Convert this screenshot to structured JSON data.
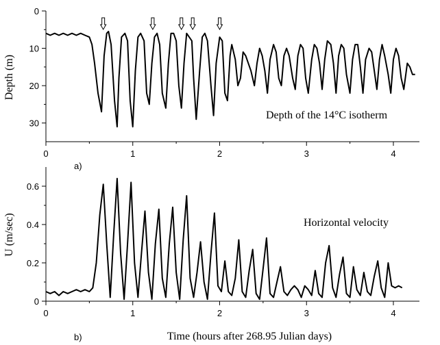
{
  "chart_data": [
    {
      "type": "line",
      "panel_label": "a)",
      "annotation": "Depth of the 14°C isotherm",
      "ylabel": "Depth (m)",
      "xlabel": "",
      "xlim": [
        0,
        4.3
      ],
      "ylim": [
        0,
        35
      ],
      "y_inverted": true,
      "x_ticks": [
        "0",
        "1",
        "2",
        "3",
        "4"
      ],
      "y_ticks": [
        "0",
        "10",
        "20",
        "30"
      ],
      "arrows_x": [
        0.66,
        1.23,
        1.56,
        1.69,
        2.0
      ],
      "series": [
        {
          "x": [
            0.0,
            0.05,
            0.1,
            0.15,
            0.2,
            0.25,
            0.3,
            0.35,
            0.4,
            0.45,
            0.5,
            0.53,
            0.56,
            0.6,
            0.64,
            0.67,
            0.7,
            0.72,
            0.75,
            0.79,
            0.82,
            0.84,
            0.87,
            0.91,
            0.94,
            0.97,
            1.0,
            1.03,
            1.06,
            1.09,
            1.13,
            1.16,
            1.19,
            1.22,
            1.25,
            1.28,
            1.31,
            1.34,
            1.38,
            1.41,
            1.44,
            1.47,
            1.5,
            1.53,
            1.56,
            1.59,
            1.62,
            1.65,
            1.68,
            1.7,
            1.73,
            1.77,
            1.8,
            1.83,
            1.86,
            1.9,
            1.93,
            1.96,
            2.0,
            2.03,
            2.06,
            2.09,
            2.12,
            2.14,
            2.18,
            2.21,
            2.24,
            2.27,
            2.3,
            2.33,
            2.36,
            2.4,
            2.43,
            2.46,
            2.49,
            2.52,
            2.55,
            2.58,
            2.62,
            2.65,
            2.68,
            2.71,
            2.74,
            2.77,
            2.8,
            2.84,
            2.87,
            2.9,
            2.93,
            2.96,
            2.99,
            3.02,
            3.06,
            3.09,
            3.12,
            3.15,
            3.18,
            3.21,
            3.24,
            3.28,
            3.31,
            3.34,
            3.37,
            3.4,
            3.43,
            3.46,
            3.5,
            3.53,
            3.56,
            3.59,
            3.62,
            3.65,
            3.68,
            3.72,
            3.75,
            3.78,
            3.81,
            3.84,
            3.87,
            3.9,
            3.94,
            3.97,
            4.0,
            4.03,
            4.06,
            4.09,
            4.12,
            4.16,
            4.19,
            4.22,
            4.25
          ],
          "values": [
            6,
            6.5,
            6,
            6.5,
            6,
            6.5,
            6,
            6.5,
            6,
            6.5,
            7,
            9,
            14,
            22,
            27,
            12,
            6,
            5.5,
            9,
            24,
            31,
            18,
            7,
            6,
            8,
            24,
            31,
            16,
            7,
            6,
            8,
            22,
            25,
            14,
            7,
            6,
            9,
            22,
            26,
            14,
            6,
            6,
            8,
            20,
            26,
            14,
            6,
            7,
            8,
            18,
            29,
            16,
            7,
            6,
            8,
            20,
            28,
            14,
            7,
            8,
            22,
            24,
            12,
            9,
            13,
            20,
            18,
            11,
            12,
            14,
            16,
            20,
            14,
            10,
            12,
            16,
            22,
            13,
            9,
            11,
            18,
            20,
            12,
            10,
            12,
            18,
            21,
            12,
            9,
            10,
            18,
            22,
            13,
            9,
            10,
            14,
            21,
            13,
            8,
            9,
            14,
            22,
            12,
            9,
            10,
            17,
            22,
            13,
            9,
            9,
            15,
            22,
            13,
            10,
            11,
            16,
            21,
            13,
            9,
            12,
            17,
            22,
            13,
            10,
            12,
            18,
            21,
            14,
            15,
            17,
            17
          ]
        }
      ]
    },
    {
      "type": "line",
      "panel_label": "b)",
      "annotation": "Horizontal velocity",
      "ylabel": "U (m/sec)",
      "xlabel": "Time (hours after 268.95 Julian days)",
      "xlim": [
        0,
        4.3
      ],
      "ylim": [
        0,
        0.7
      ],
      "x_ticks": [
        "0",
        "1",
        "2",
        "3",
        "4"
      ],
      "y_ticks": [
        "0",
        "0.2",
        "0.4",
        "0.6"
      ],
      "series": [
        {
          "x": [
            0.0,
            0.05,
            0.1,
            0.15,
            0.2,
            0.25,
            0.3,
            0.35,
            0.4,
            0.45,
            0.5,
            0.54,
            0.58,
            0.62,
            0.66,
            0.7,
            0.74,
            0.78,
            0.82,
            0.86,
            0.9,
            0.94,
            0.98,
            1.02,
            1.06,
            1.1,
            1.14,
            1.18,
            1.22,
            1.26,
            1.3,
            1.34,
            1.38,
            1.42,
            1.46,
            1.5,
            1.54,
            1.58,
            1.62,
            1.66,
            1.7,
            1.74,
            1.78,
            1.82,
            1.86,
            1.9,
            1.94,
            1.98,
            2.02,
            2.06,
            2.1,
            2.14,
            2.18,
            2.22,
            2.26,
            2.3,
            2.34,
            2.38,
            2.42,
            2.46,
            2.5,
            2.54,
            2.58,
            2.62,
            2.66,
            2.7,
            2.74,
            2.78,
            2.82,
            2.86,
            2.9,
            2.94,
            2.98,
            3.02,
            3.06,
            3.1,
            3.14,
            3.18,
            3.22,
            3.26,
            3.3,
            3.34,
            3.38,
            3.42,
            3.46,
            3.5,
            3.54,
            3.58,
            3.62,
            3.66,
            3.7,
            3.74,
            3.78,
            3.82,
            3.86,
            3.9,
            3.94,
            3.98,
            4.02,
            4.06,
            4.1
          ],
          "values": [
            0.05,
            0.04,
            0.05,
            0.03,
            0.05,
            0.04,
            0.05,
            0.06,
            0.05,
            0.06,
            0.05,
            0.07,
            0.2,
            0.45,
            0.61,
            0.3,
            0.02,
            0.35,
            0.64,
            0.25,
            0.01,
            0.3,
            0.62,
            0.2,
            0.02,
            0.25,
            0.47,
            0.15,
            0.01,
            0.3,
            0.48,
            0.12,
            0.02,
            0.3,
            0.49,
            0.15,
            0.01,
            0.32,
            0.55,
            0.12,
            0.02,
            0.15,
            0.31,
            0.1,
            0.01,
            0.25,
            0.46,
            0.08,
            0.05,
            0.21,
            0.05,
            0.03,
            0.12,
            0.32,
            0.05,
            0.02,
            0.16,
            0.27,
            0.04,
            0.01,
            0.17,
            0.33,
            0.04,
            0.02,
            0.1,
            0.18,
            0.05,
            0.03,
            0.06,
            0.08,
            0.06,
            0.02,
            0.08,
            0.06,
            0.03,
            0.16,
            0.04,
            0.02,
            0.2,
            0.29,
            0.07,
            0.02,
            0.14,
            0.23,
            0.04,
            0.02,
            0.18,
            0.06,
            0.03,
            0.15,
            0.05,
            0.03,
            0.13,
            0.21,
            0.07,
            0.02,
            0.2,
            0.08,
            0.07,
            0.08,
            0.07
          ]
        }
      ]
    }
  ]
}
